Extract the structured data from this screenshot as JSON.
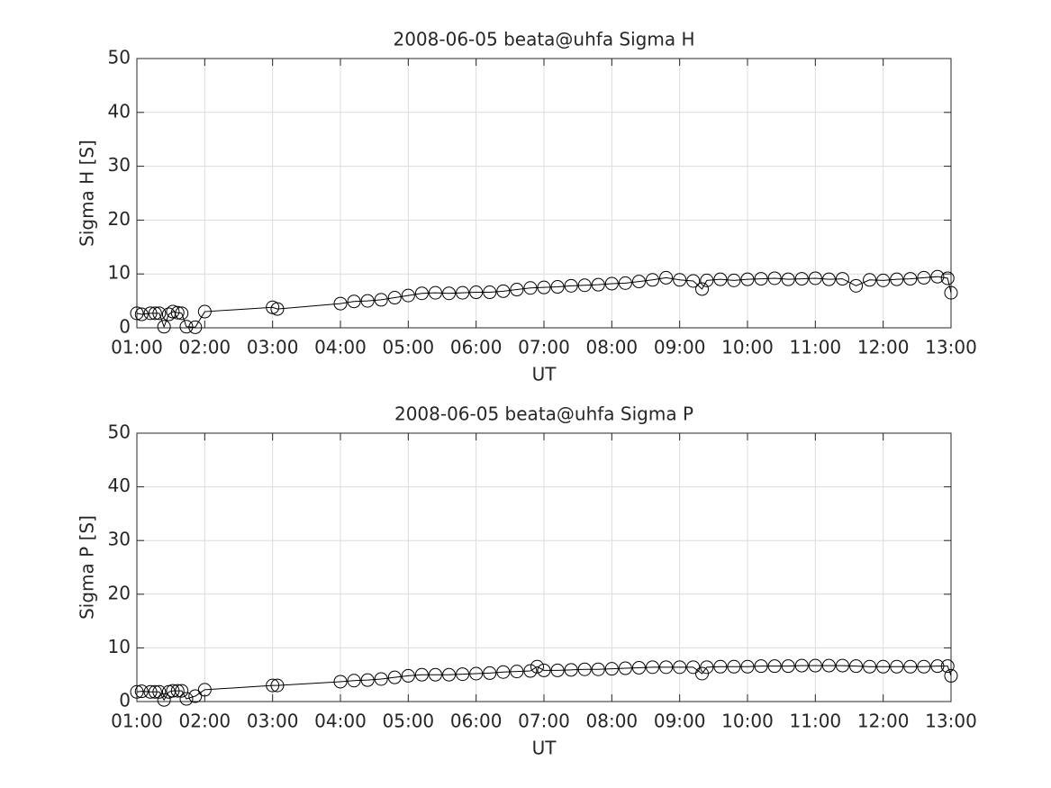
{
  "chart_data": [
    {
      "type": "line",
      "title": "2008-06-05  beata@uhfa Sigma H",
      "xlabel": "UT",
      "ylabel": "Sigma H [S]",
      "color": "#000000",
      "marker": "circle",
      "grid": true,
      "x": [
        1.0,
        1.07,
        1.2,
        1.27,
        1.33,
        1.4,
        1.47,
        1.53,
        1.6,
        1.66,
        1.73,
        1.86,
        2.0,
        3.0,
        3.07,
        4.0,
        4.2,
        4.4,
        4.6,
        4.8,
        5.0,
        5.2,
        5.4,
        5.6,
        5.8,
        6.0,
        6.2,
        6.4,
        6.6,
        6.8,
        7.0,
        7.2,
        7.4,
        7.6,
        7.8,
        8.0,
        8.2,
        8.4,
        8.6,
        8.8,
        9.0,
        9.2,
        9.33,
        9.4,
        9.6,
        9.8,
        10.0,
        10.2,
        10.4,
        10.6,
        10.8,
        11.0,
        11.2,
        11.4,
        11.6,
        11.8,
        12.0,
        12.2,
        12.4,
        12.6,
        12.8,
        12.95,
        13.0
      ],
      "values": [
        2.7,
        2.5,
        2.7,
        2.7,
        2.7,
        0.2,
        2.5,
        3.0,
        2.8,
        2.7,
        0.2,
        0.1,
        3.0,
        3.8,
        3.5,
        4.5,
        4.9,
        5.0,
        5.2,
        5.6,
        6.0,
        6.4,
        6.5,
        6.4,
        6.5,
        6.6,
        6.6,
        6.8,
        7.1,
        7.4,
        7.5,
        7.6,
        7.8,
        7.9,
        8.0,
        8.2,
        8.3,
        8.6,
        8.9,
        9.3,
        8.9,
        8.7,
        7.2,
        8.8,
        9.0,
        8.8,
        9.0,
        9.1,
        9.2,
        9.0,
        9.1,
        9.2,
        9.0,
        9.1,
        7.8,
        8.9,
        8.8,
        9.0,
        9.1,
        9.3,
        9.5,
        9.2,
        6.5
      ],
      "xlim": [
        1,
        13
      ],
      "ylim": [
        0,
        50
      ],
      "xticks": [
        {
          "value": 1,
          "label": "01:00"
        },
        {
          "value": 2,
          "label": "02:00"
        },
        {
          "value": 3,
          "label": "03:00"
        },
        {
          "value": 4,
          "label": "04:00"
        },
        {
          "value": 5,
          "label": "05:00"
        },
        {
          "value": 6,
          "label": "06:00"
        },
        {
          "value": 7,
          "label": "07:00"
        },
        {
          "value": 8,
          "label": "08:00"
        },
        {
          "value": 9,
          "label": "09:00"
        },
        {
          "value": 10,
          "label": "10:00"
        },
        {
          "value": 11,
          "label": "11:00"
        },
        {
          "value": 12,
          "label": "12:00"
        },
        {
          "value": 13,
          "label": "13:00"
        }
      ],
      "yticks": [
        0,
        10,
        20,
        30,
        40,
        50
      ]
    },
    {
      "type": "line",
      "title": "2008-06-05  beata@uhfa Sigma P",
      "xlabel": "UT",
      "ylabel": "Sigma P [S]",
      "color": "#000000",
      "marker": "circle",
      "grid": true,
      "x": [
        1.0,
        1.07,
        1.2,
        1.27,
        1.33,
        1.4,
        1.47,
        1.53,
        1.6,
        1.66,
        1.73,
        1.86,
        2.0,
        3.0,
        3.07,
        4.0,
        4.2,
        4.4,
        4.6,
        4.8,
        5.0,
        5.2,
        5.4,
        5.6,
        5.8,
        6.0,
        6.2,
        6.4,
        6.6,
        6.8,
        6.9,
        7.0,
        7.2,
        7.4,
        7.6,
        7.8,
        8.0,
        8.2,
        8.4,
        8.6,
        8.8,
        9.0,
        9.2,
        9.33,
        9.4,
        9.6,
        9.8,
        10.0,
        10.2,
        10.4,
        10.6,
        10.8,
        11.0,
        11.2,
        11.4,
        11.6,
        11.8,
        12.0,
        12.2,
        12.4,
        12.6,
        12.8,
        12.95,
        13.0
      ],
      "values": [
        1.8,
        1.9,
        1.8,
        1.8,
        1.8,
        0.3,
        1.8,
        2.0,
        2.0,
        2.0,
        0.5,
        1.0,
        2.2,
        3.0,
        3.0,
        3.7,
        3.9,
        4.0,
        4.2,
        4.5,
        4.8,
        5.0,
        5.0,
        5.0,
        5.1,
        5.2,
        5.3,
        5.5,
        5.6,
        5.7,
        6.5,
        5.8,
        5.8,
        5.9,
        6.0,
        6.0,
        6.1,
        6.2,
        6.3,
        6.4,
        6.4,
        6.4,
        6.4,
        5.2,
        6.4,
        6.5,
        6.5,
        6.5,
        6.6,
        6.6,
        6.6,
        6.7,
        6.7,
        6.7,
        6.7,
        6.6,
        6.5,
        6.5,
        6.5,
        6.5,
        6.5,
        6.6,
        6.6,
        4.8
      ],
      "xlim": [
        1,
        13
      ],
      "ylim": [
        0,
        50
      ],
      "xticks": [
        {
          "value": 1,
          "label": "01:00"
        },
        {
          "value": 2,
          "label": "02:00"
        },
        {
          "value": 3,
          "label": "03:00"
        },
        {
          "value": 4,
          "label": "04:00"
        },
        {
          "value": 5,
          "label": "05:00"
        },
        {
          "value": 6,
          "label": "06:00"
        },
        {
          "value": 7,
          "label": "07:00"
        },
        {
          "value": 8,
          "label": "08:00"
        },
        {
          "value": 9,
          "label": "09:00"
        },
        {
          "value": 10,
          "label": "10:00"
        },
        {
          "value": 11,
          "label": "11:00"
        },
        {
          "value": 12,
          "label": "12:00"
        },
        {
          "value": 13,
          "label": "13:00"
        }
      ],
      "yticks": [
        0,
        10,
        20,
        30,
        40,
        50
      ]
    }
  ]
}
